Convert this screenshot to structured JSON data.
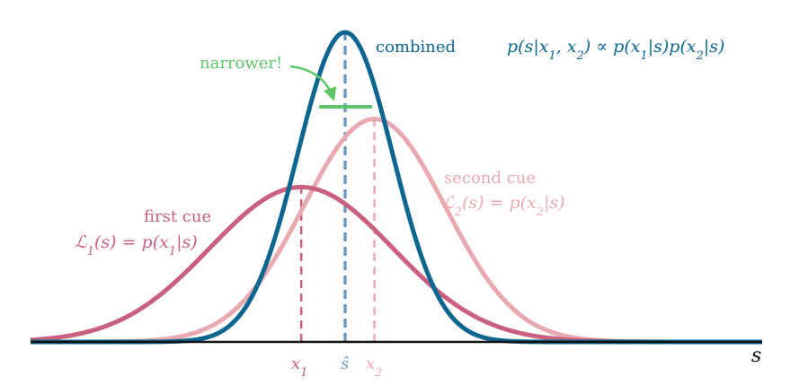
{
  "colors": {
    "first": "#c9607d",
    "second": "#e8a9b0",
    "combined": "#0c6690",
    "combined_dash": "#6f9fbe",
    "narrower": "#5ec56b",
    "axis": "#111111"
  },
  "labels": {
    "narrower": "narrower!",
    "combined": "combined",
    "first_cue": "first cue",
    "second_cue": "second cue",
    "axis_var": "s"
  },
  "formulas": {
    "posterior": {
      "pre": "p(s|x",
      "s1": "1",
      "mid": ", x",
      "s2": "2",
      "post": ") ∝ p(x",
      "s3": "1",
      "post2": "|s)p(x",
      "s4": "2",
      "post3": "|s)"
    },
    "first": {
      "pre": "ℒ",
      "sub1": "1",
      "mid": "(s) = p(x",
      "sub2": "1",
      "post": "|s)"
    },
    "second": {
      "pre": "ℒ",
      "sub1": "2",
      "mid": "(s) = p(x",
      "sub2": "2",
      "post": "|s)"
    }
  },
  "ticks": {
    "x1": {
      "base": "x",
      "sub": "1"
    },
    "shat": "ŝ",
    "x2": {
      "base": "x",
      "sub": "2"
    }
  },
  "chart_data": {
    "type": "line",
    "x_domain": [
      0,
      10
    ],
    "series": [
      {
        "name": "first cue",
        "mean": 3.7,
        "sd": 1.25,
        "peak": 0.5
      },
      {
        "name": "second cue",
        "mean": 4.7,
        "sd": 0.97,
        "peak": 0.72
      },
      {
        "name": "combined",
        "mean": 4.3,
        "sd": 0.65,
        "peak": 1.0
      }
    ]
  }
}
